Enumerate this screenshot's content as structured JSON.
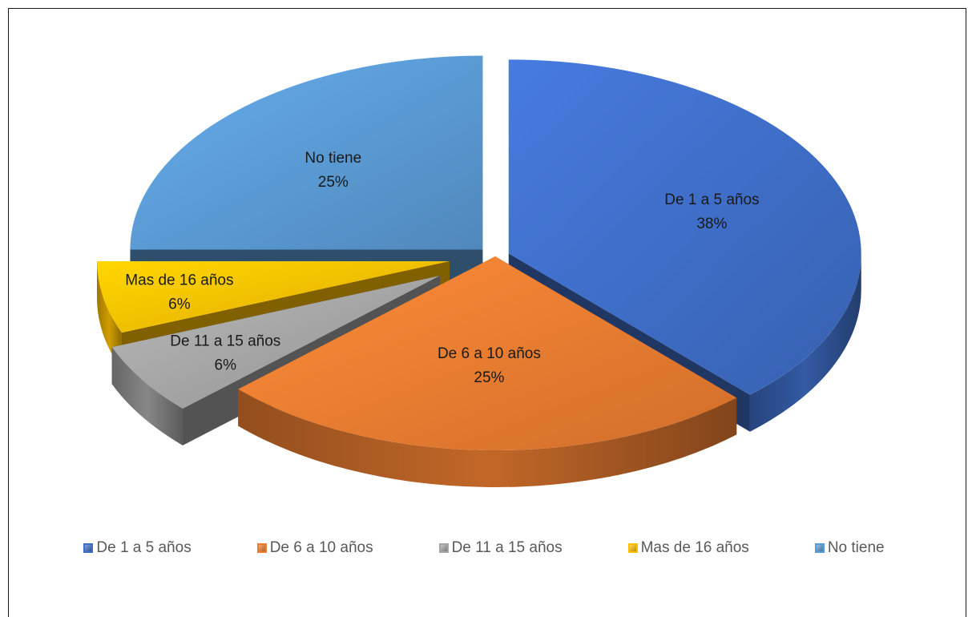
{
  "chart_data": {
    "type": "pie",
    "categories": [
      "De 1 a 5 años",
      "De 6 a 10 años",
      "De 11 a 15 años",
      "Mas de 16 años",
      "No tiene"
    ],
    "values": [
      38,
      25,
      6,
      6,
      25
    ],
    "percent_labels": [
      "38%",
      "25%",
      "6%",
      "6%",
      "25%"
    ],
    "colors": [
      "#3f6ec8",
      "#ed7d31",
      "#a5a5a5",
      "#ffc000",
      "#5b9bd5"
    ],
    "legend_position": "bottom",
    "style": "3d-exploded"
  }
}
